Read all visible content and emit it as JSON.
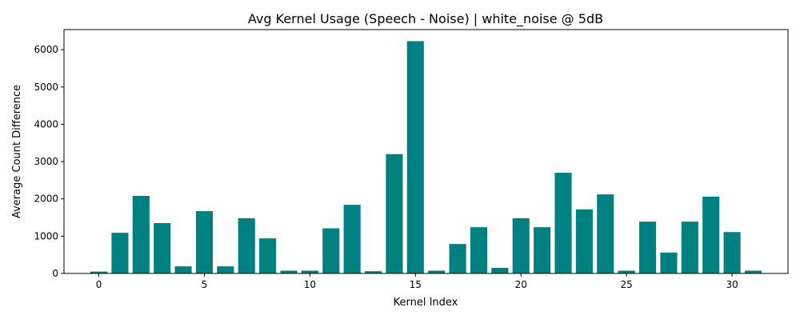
{
  "chart_data": {
    "type": "bar",
    "title": "Avg Kernel Usage (Speech - Noise) | white_noise @ 5dB",
    "xlabel": "Kernel Index",
    "ylabel": "Average Count Difference",
    "x": [
      0,
      1,
      2,
      3,
      4,
      5,
      6,
      7,
      8,
      9,
      10,
      11,
      12,
      13,
      14,
      15,
      16,
      17,
      18,
      19,
      20,
      21,
      22,
      23,
      24,
      25,
      26,
      27,
      28,
      29,
      30,
      31
    ],
    "values": [
      50,
      1090,
      2080,
      1350,
      190,
      1670,
      190,
      1480,
      940,
      75,
      75,
      1210,
      1840,
      60,
      3200,
      6230,
      75,
      790,
      1240,
      150,
      1480,
      1240,
      2700,
      1720,
      2120,
      75,
      1390,
      560,
      1390,
      2060,
      1110,
      75
    ],
    "xlim": [
      -1.65,
      32.65
    ],
    "ylim": [
      0,
      6540
    ],
    "x_ticks": [
      0,
      5,
      10,
      15,
      20,
      25,
      30
    ],
    "y_ticks": [
      0,
      1000,
      2000,
      3000,
      4000,
      5000,
      6000
    ],
    "bar_color": "#008080",
    "grid": false,
    "legend": "none"
  }
}
